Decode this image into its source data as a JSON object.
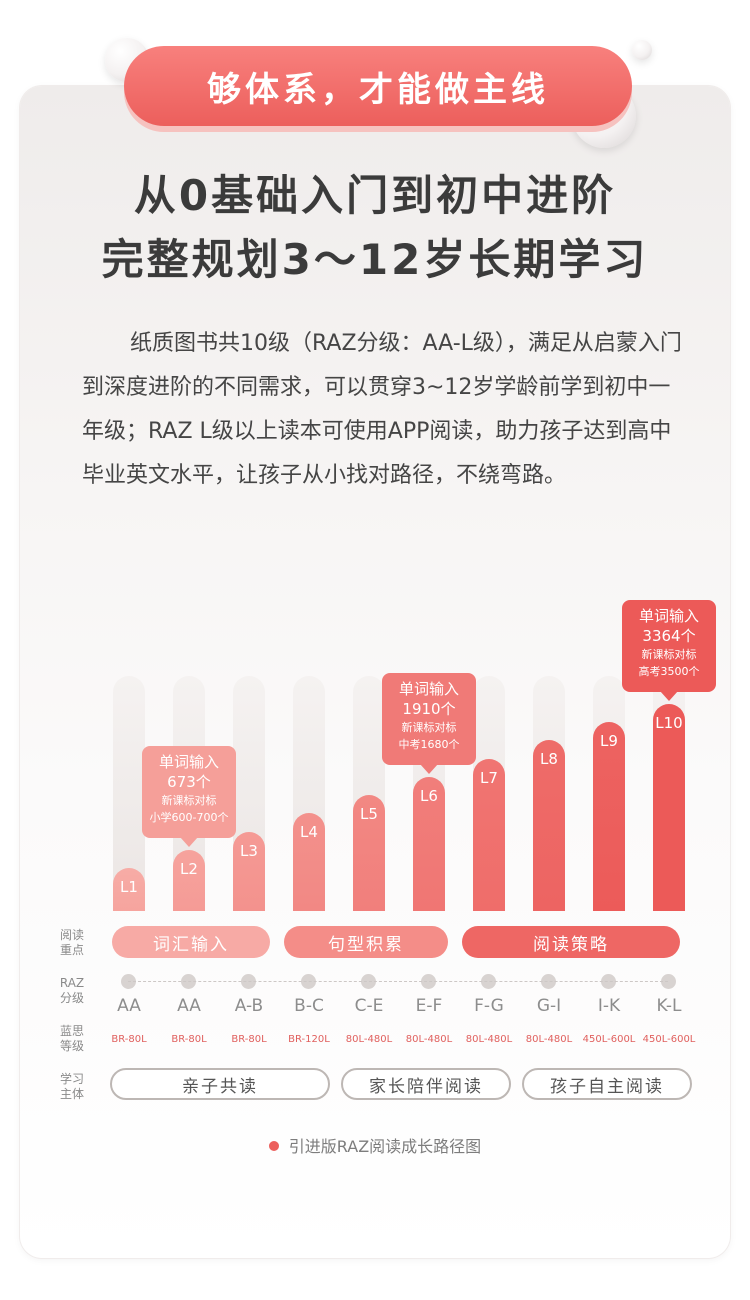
{
  "banner": {
    "title": "够体系，才能做主线"
  },
  "headline": {
    "line1": "从0基础入门到初中进阶",
    "line2": "完整规划3～12岁长期学习"
  },
  "description": "纸质图书共10级（RAZ分级：AA-L级），满足从启蒙入门到深度进阶的不同需求，可以贯穿3~12岁学龄前学到初中一年级；RAZ L级以上读本可使用APP阅读，助力孩子达到高中毕业英文水平，让孩子从小找对路径，不绕弯路。",
  "colors": {
    "accent": "#ec5f5c",
    "light": "#f6a9a4",
    "track": "#ebe6e4"
  },
  "chart_data": {
    "type": "bar",
    "categories": [
      "L1",
      "L2",
      "L3",
      "L4",
      "L5",
      "L6",
      "L7",
      "L8",
      "L9",
      "L10"
    ],
    "values": [
      1,
      2,
      3,
      4,
      5,
      6,
      7,
      8,
      9,
      10
    ],
    "ylim": [
      0,
      10
    ],
    "grid": false,
    "callouts": [
      {
        "level": "L2",
        "line1": "单词输入",
        "line2": "673个",
        "line3": "新课标对标",
        "line4": "小学600-700个"
      },
      {
        "level": "L6",
        "line1": "单词输入",
        "line2": "1910个",
        "line3": "新课标对标",
        "line4": "中考1680个"
      },
      {
        "level": "L10",
        "line1": "单词输入",
        "line2": "3364个",
        "line3": "新课标对标",
        "line4": "高考3500个"
      }
    ],
    "raz_levels": [
      "AA",
      "AA",
      "A-B",
      "B-C",
      "C-E",
      "E-F",
      "F-G",
      "G-I",
      "I-K",
      "K-L"
    ],
    "lexile": [
      "BR-80L",
      "BR-80L",
      "BR-80L",
      "BR-120L",
      "80L-480L",
      "80L-480L",
      "80L-480L",
      "80L-480L",
      "450L-600L",
      "450L-600L"
    ],
    "reading_focus": [
      "词汇输入",
      "句型积累",
      "阅读策略"
    ],
    "reading_subject": [
      "亲子共读",
      "家长陪伴阅读",
      "孩子自主阅读"
    ],
    "row_labels": {
      "focus": [
        "阅读",
        "重点"
      ],
      "raz": [
        "RAZ",
        "分级"
      ],
      "lexile": [
        "蓝思",
        "等级"
      ],
      "subject": [
        "学习",
        "主体"
      ]
    },
    "caption": "引进版RAZ阅读成长路径图"
  }
}
